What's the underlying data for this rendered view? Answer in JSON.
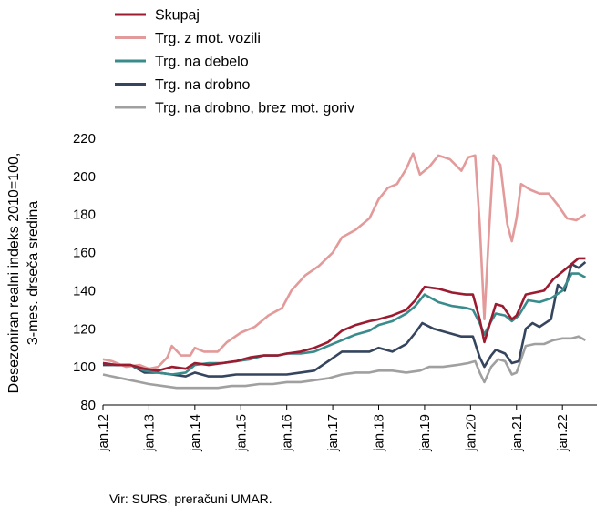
{
  "chart_data": {
    "type": "line",
    "ylabel": [
      "Desezoniran realni indeks 2010=100,",
      "3-mes. drseča sredina"
    ],
    "ylim": [
      80,
      220
    ],
    "yticks": [
      80,
      100,
      120,
      140,
      160,
      180,
      200,
      220
    ],
    "xlim": [
      2012.0,
      2022.75
    ],
    "xticks": [
      {
        "value": 2012,
        "label": "jan.12"
      },
      {
        "value": 2013,
        "label": "jan.13"
      },
      {
        "value": 2014,
        "label": "jan.14"
      },
      {
        "value": 2015,
        "label": "jan.15"
      },
      {
        "value": 2016,
        "label": "jan.16"
      },
      {
        "value": 2017,
        "label": "jan.17"
      },
      {
        "value": 2018,
        "label": "jan.18"
      },
      {
        "value": 2019,
        "label": "jan.19"
      },
      {
        "value": 2020,
        "label": "jan.20"
      },
      {
        "value": 2021,
        "label": "jan.21"
      },
      {
        "value": 2022,
        "label": "jan.22"
      }
    ],
    "grid": false,
    "legend_position": "top-left",
    "series": [
      {
        "name": "Skupaj",
        "color": "#9b1b30",
        "points": [
          [
            2012.0,
            102
          ],
          [
            2012.3,
            101
          ],
          [
            2012.6,
            101
          ],
          [
            2012.9,
            99
          ],
          [
            2013.2,
            98
          ],
          [
            2013.5,
            100
          ],
          [
            2013.8,
            99
          ],
          [
            2014.0,
            102
          ],
          [
            2014.3,
            101
          ],
          [
            2014.6,
            102
          ],
          [
            2014.9,
            103
          ],
          [
            2015.2,
            105
          ],
          [
            2015.5,
            106
          ],
          [
            2015.8,
            106
          ],
          [
            2016.0,
            107
          ],
          [
            2016.3,
            108
          ],
          [
            2016.6,
            110
          ],
          [
            2016.9,
            113
          ],
          [
            2017.2,
            119
          ],
          [
            2017.5,
            122
          ],
          [
            2017.8,
            124
          ],
          [
            2018.0,
            125
          ],
          [
            2018.3,
            127
          ],
          [
            2018.6,
            130
          ],
          [
            2018.8,
            135
          ],
          [
            2019.0,
            142
          ],
          [
            2019.3,
            141
          ],
          [
            2019.6,
            139
          ],
          [
            2019.9,
            138
          ],
          [
            2020.05,
            138
          ],
          [
            2020.2,
            125
          ],
          [
            2020.3,
            113
          ],
          [
            2020.45,
            125
          ],
          [
            2020.55,
            133
          ],
          [
            2020.7,
            132
          ],
          [
            2020.9,
            125
          ],
          [
            2021.0,
            127
          ],
          [
            2021.2,
            138
          ],
          [
            2021.4,
            139
          ],
          [
            2021.6,
            140
          ],
          [
            2021.8,
            146
          ],
          [
            2022.0,
            150
          ],
          [
            2022.2,
            154
          ],
          [
            2022.35,
            157
          ],
          [
            2022.5,
            157
          ]
        ]
      },
      {
        "name": "Trg. z mot. vozili",
        "color": "#e39a9a",
        "points": [
          [
            2012.0,
            104
          ],
          [
            2012.2,
            103
          ],
          [
            2012.5,
            100
          ],
          [
            2012.8,
            101
          ],
          [
            2013.0,
            99
          ],
          [
            2013.2,
            100
          ],
          [
            2013.4,
            105
          ],
          [
            2013.5,
            111
          ],
          [
            2013.7,
            106
          ],
          [
            2013.9,
            106
          ],
          [
            2014.0,
            110
          ],
          [
            2014.2,
            108
          ],
          [
            2014.5,
            108
          ],
          [
            2014.7,
            113
          ],
          [
            2015.0,
            118
          ],
          [
            2015.3,
            121
          ],
          [
            2015.6,
            127
          ],
          [
            2015.9,
            131
          ],
          [
            2016.1,
            140
          ],
          [
            2016.4,
            148
          ],
          [
            2016.7,
            153
          ],
          [
            2017.0,
            160
          ],
          [
            2017.2,
            168
          ],
          [
            2017.5,
            172
          ],
          [
            2017.8,
            178
          ],
          [
            2018.0,
            188
          ],
          [
            2018.2,
            194
          ],
          [
            2018.4,
            196
          ],
          [
            2018.6,
            204
          ],
          [
            2018.75,
            212
          ],
          [
            2018.9,
            201
          ],
          [
            2019.1,
            205
          ],
          [
            2019.3,
            211
          ],
          [
            2019.55,
            209
          ],
          [
            2019.8,
            203
          ],
          [
            2019.95,
            210
          ],
          [
            2020.1,
            211
          ],
          [
            2020.2,
            175
          ],
          [
            2020.3,
            125
          ],
          [
            2020.4,
            170
          ],
          [
            2020.5,
            211
          ],
          [
            2020.65,
            206
          ],
          [
            2020.8,
            175
          ],
          [
            2020.9,
            166
          ],
          [
            2021.0,
            178
          ],
          [
            2021.1,
            196
          ],
          [
            2021.3,
            193
          ],
          [
            2021.5,
            191
          ],
          [
            2021.7,
            191
          ],
          [
            2021.9,
            185
          ],
          [
            2022.1,
            178
          ],
          [
            2022.3,
            177
          ],
          [
            2022.5,
            180
          ]
        ]
      },
      {
        "name": "Trg. na debelo",
        "color": "#3a8c8c",
        "points": [
          [
            2012.0,
            102
          ],
          [
            2012.3,
            101
          ],
          [
            2012.6,
            101
          ],
          [
            2012.9,
            98
          ],
          [
            2013.2,
            97
          ],
          [
            2013.5,
            96
          ],
          [
            2013.8,
            97
          ],
          [
            2014.0,
            101
          ],
          [
            2014.3,
            102
          ],
          [
            2014.6,
            102
          ],
          [
            2014.9,
            103
          ],
          [
            2015.2,
            104
          ],
          [
            2015.5,
            106
          ],
          [
            2015.8,
            106
          ],
          [
            2016.0,
            107
          ],
          [
            2016.3,
            107
          ],
          [
            2016.6,
            108
          ],
          [
            2016.9,
            111
          ],
          [
            2017.2,
            114
          ],
          [
            2017.5,
            117
          ],
          [
            2017.8,
            119
          ],
          [
            2018.0,
            122
          ],
          [
            2018.3,
            124
          ],
          [
            2018.6,
            128
          ],
          [
            2018.8,
            132
          ],
          [
            2019.0,
            138
          ],
          [
            2019.3,
            134
          ],
          [
            2019.6,
            132
          ],
          [
            2019.9,
            131
          ],
          [
            2020.05,
            130
          ],
          [
            2020.2,
            123
          ],
          [
            2020.3,
            117
          ],
          [
            2020.45,
            124
          ],
          [
            2020.55,
            128
          ],
          [
            2020.75,
            127
          ],
          [
            2020.9,
            124
          ],
          [
            2021.05,
            127
          ],
          [
            2021.25,
            135
          ],
          [
            2021.5,
            134
          ],
          [
            2021.75,
            136
          ],
          [
            2022.0,
            140
          ],
          [
            2022.2,
            149
          ],
          [
            2022.35,
            149
          ],
          [
            2022.5,
            147
          ]
        ]
      },
      {
        "name": "Trg. na drobno",
        "color": "#36455e",
        "points": [
          [
            2012.0,
            101
          ],
          [
            2012.3,
            101
          ],
          [
            2012.6,
            101
          ],
          [
            2012.9,
            97
          ],
          [
            2013.2,
            97
          ],
          [
            2013.5,
            96
          ],
          [
            2013.8,
            95
          ],
          [
            2014.0,
            97
          ],
          [
            2014.3,
            95
          ],
          [
            2014.6,
            95
          ],
          [
            2014.9,
            96
          ],
          [
            2015.2,
            96
          ],
          [
            2015.5,
            96
          ],
          [
            2015.8,
            96
          ],
          [
            2016.0,
            96
          ],
          [
            2016.3,
            97
          ],
          [
            2016.6,
            98
          ],
          [
            2016.9,
            103
          ],
          [
            2017.2,
            108
          ],
          [
            2017.5,
            108
          ],
          [
            2017.8,
            108
          ],
          [
            2018.0,
            110
          ],
          [
            2018.3,
            108
          ],
          [
            2018.6,
            112
          ],
          [
            2018.8,
            118
          ],
          [
            2018.95,
            123
          ],
          [
            2019.2,
            120
          ],
          [
            2019.5,
            118
          ],
          [
            2019.8,
            116
          ],
          [
            2020.05,
            116
          ],
          [
            2020.2,
            105
          ],
          [
            2020.3,
            100
          ],
          [
            2020.45,
            106
          ],
          [
            2020.55,
            109
          ],
          [
            2020.75,
            107
          ],
          [
            2020.9,
            102
          ],
          [
            2021.05,
            103
          ],
          [
            2021.2,
            120
          ],
          [
            2021.35,
            123
          ],
          [
            2021.5,
            121
          ],
          [
            2021.75,
            125
          ],
          [
            2021.9,
            143
          ],
          [
            2022.05,
            140
          ],
          [
            2022.2,
            154
          ],
          [
            2022.35,
            152
          ],
          [
            2022.5,
            155
          ]
        ]
      },
      {
        "name": "Trg. na drobno, brez mot. goriv",
        "color": "#a0a0a0",
        "points": [
          [
            2012.0,
            96
          ],
          [
            2012.2,
            95
          ],
          [
            2012.4,
            94
          ],
          [
            2012.6,
            93
          ],
          [
            2012.8,
            92
          ],
          [
            2013.0,
            91
          ],
          [
            2013.3,
            90
          ],
          [
            2013.6,
            89
          ],
          [
            2013.9,
            89
          ],
          [
            2014.2,
            89
          ],
          [
            2014.5,
            89
          ],
          [
            2014.8,
            90
          ],
          [
            2015.1,
            90
          ],
          [
            2015.4,
            91
          ],
          [
            2015.7,
            91
          ],
          [
            2016.0,
            92
          ],
          [
            2016.3,
            92
          ],
          [
            2016.6,
            93
          ],
          [
            2016.9,
            94
          ],
          [
            2017.2,
            96
          ],
          [
            2017.5,
            97
          ],
          [
            2017.8,
            97
          ],
          [
            2018.0,
            98
          ],
          [
            2018.3,
            98
          ],
          [
            2018.6,
            97
          ],
          [
            2018.9,
            98
          ],
          [
            2019.1,
            100
          ],
          [
            2019.4,
            100
          ],
          [
            2019.7,
            101
          ],
          [
            2019.95,
            102
          ],
          [
            2020.1,
            103
          ],
          [
            2020.2,
            97
          ],
          [
            2020.3,
            92
          ],
          [
            2020.45,
            100
          ],
          [
            2020.6,
            104
          ],
          [
            2020.75,
            103
          ],
          [
            2020.9,
            96
          ],
          [
            2021.0,
            97
          ],
          [
            2021.2,
            111
          ],
          [
            2021.4,
            112
          ],
          [
            2021.6,
            112
          ],
          [
            2021.8,
            114
          ],
          [
            2022.0,
            115
          ],
          [
            2022.2,
            115
          ],
          [
            2022.35,
            116
          ],
          [
            2022.5,
            114
          ]
        ]
      }
    ]
  },
  "source": "Vir: SURS, preračuni UMAR."
}
